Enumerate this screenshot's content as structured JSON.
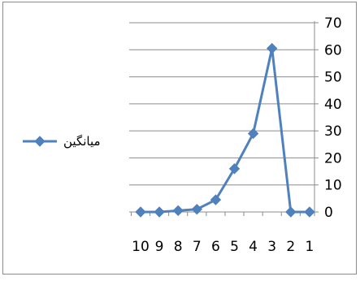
{
  "chart_data": {
    "type": "line",
    "categories": [
      "10",
      "9",
      "8",
      "7",
      "6",
      "5",
      "4",
      "3",
      "2",
      "1"
    ],
    "series": [
      {
        "name": "میانگین",
        "values": [
          0,
          0,
          0.5,
          1,
          4.5,
          16,
          29,
          60.5,
          0,
          0
        ]
      }
    ],
    "ylim": [
      0,
      70
    ],
    "yticks": [
      0,
      10,
      20,
      30,
      40,
      50,
      60,
      70
    ],
    "y_axis_side": "right",
    "grid": true,
    "legend_placement": "left",
    "color": "#4f81bd"
  }
}
